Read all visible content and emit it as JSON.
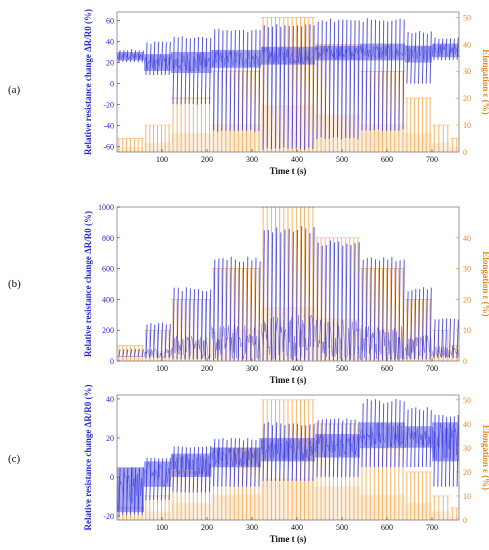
{
  "chart_data": [
    {
      "panel_label": "(a)",
      "type": "line",
      "xlabel": "Time t (s)",
      "ylabel_left": "Relative resistance change ΔR/R0 (%)",
      "ylabel_right": "Elongation ε (%)",
      "xlim": [
        0,
        760
      ],
      "ylim_left": [
        -65,
        68
      ],
      "ylim_right": [
        0,
        52
      ],
      "xticks": [
        100,
        200,
        300,
        400,
        500,
        600,
        700
      ],
      "yticks_left": [
        -60,
        -40,
        -20,
        0,
        20,
        40,
        60
      ],
      "yticks_right": [
        0,
        10,
        20,
        30,
        40,
        50
      ],
      "series": [
        {
          "name": "resistance",
          "axis": "left",
          "color": "#3a3ae0",
          "envelope": [
            {
              "t0": 0,
              "t1": 60,
              "base_lo": 22,
              "base_hi": 30,
              "peak": 33,
              "valley": 20
            },
            {
              "t0": 60,
              "t1": 120,
              "base_lo": 12,
              "base_hi": 28,
              "peak": 40,
              "valley": 8
            },
            {
              "t0": 120,
              "t1": 210,
              "base_lo": 10,
              "base_hi": 30,
              "peak": 45,
              "valley": -20
            },
            {
              "t0": 210,
              "t1": 320,
              "base_lo": 15,
              "base_hi": 32,
              "peak": 52,
              "valley": -46
            },
            {
              "t0": 320,
              "t1": 440,
              "base_lo": 18,
              "base_hi": 35,
              "peak": 57,
              "valley": -63
            },
            {
              "t0": 440,
              "t1": 540,
              "base_lo": 22,
              "base_hi": 36,
              "peak": 62,
              "valley": -53
            },
            {
              "t0": 540,
              "t1": 640,
              "base_lo": 22,
              "base_hi": 38,
              "peak": 62,
              "valley": -45
            },
            {
              "t0": 640,
              "t1": 700,
              "base_lo": 20,
              "base_hi": 36,
              "peak": 50,
              "valley": 0
            },
            {
              "t0": 700,
              "t1": 760,
              "base_lo": 25,
              "base_hi": 38,
              "peak": 44,
              "valley": 22
            }
          ]
        },
        {
          "name": "elongation",
          "axis": "right",
          "color": "#f2a040",
          "steps": [
            {
              "t0": 0,
              "t1": 60,
              "level": 5
            },
            {
              "t0": 60,
              "t1": 120,
              "level": 10
            },
            {
              "t0": 120,
              "t1": 210,
              "level": 20
            },
            {
              "t0": 210,
              "t1": 320,
              "level": 30
            },
            {
              "t0": 320,
              "t1": 440,
              "level": 50
            },
            {
              "t0": 440,
              "t1": 540,
              "level": 40
            },
            {
              "t0": 540,
              "t1": 640,
              "level": 30
            },
            {
              "t0": 640,
              "t1": 700,
              "level": 20
            },
            {
              "t0": 700,
              "t1": 740,
              "level": 10
            },
            {
              "t0": 740,
              "t1": 760,
              "level": 5
            }
          ]
        }
      ]
    },
    {
      "panel_label": "(b)",
      "type": "line",
      "xlabel": "Time t (s)",
      "ylabel_left": "Relative resistance change ΔR/R0 (%)",
      "ylabel_right": "Elongation ε (%)",
      "xlim": [
        0,
        760
      ],
      "ylim_left": [
        0,
        1000
      ],
      "ylim_right": [
        0,
        50
      ],
      "xticks": [
        100,
        200,
        300,
        400,
        500,
        600,
        700
      ],
      "yticks_left": [
        0,
        200,
        400,
        600,
        800,
        1000
      ],
      "yticks_right": [
        0,
        10,
        20,
        30,
        40
      ],
      "series": [
        {
          "name": "resistance",
          "axis": "left",
          "color": "#3a3ae0",
          "envelope": [
            {
              "t0": 0,
              "t1": 60,
              "peak": 80,
              "valley": 30
            },
            {
              "t0": 60,
              "t1": 120,
              "peak": 250,
              "valley": 20
            },
            {
              "t0": 120,
              "t1": 210,
              "peak": 480,
              "valley": 10
            },
            {
              "t0": 210,
              "t1": 320,
              "peak": 680,
              "valley": 5
            },
            {
              "t0": 320,
              "t1": 440,
              "peak": 880,
              "valley": 5
            },
            {
              "t0": 440,
              "t1": 540,
              "peak": 790,
              "valley": 5
            },
            {
              "t0": 540,
              "t1": 640,
              "peak": 680,
              "valley": 5
            },
            {
              "t0": 640,
              "t1": 700,
              "peak": 480,
              "valley": 10
            },
            {
              "t0": 700,
              "t1": 760,
              "peak": 280,
              "valley": 20
            }
          ]
        },
        {
          "name": "elongation",
          "axis": "right",
          "color": "#f2a040",
          "steps": [
            {
              "t0": 0,
              "t1": 60,
              "level": 5
            },
            {
              "t0": 60,
              "t1": 120,
              "level": 10
            },
            {
              "t0": 120,
              "t1": 210,
              "level": 20
            },
            {
              "t0": 210,
              "t1": 320,
              "level": 30
            },
            {
              "t0": 320,
              "t1": 440,
              "level": 50
            },
            {
              "t0": 440,
              "t1": 540,
              "level": 40
            },
            {
              "t0": 540,
              "t1": 640,
              "level": 30
            },
            {
              "t0": 640,
              "t1": 700,
              "level": 20
            },
            {
              "t0": 700,
              "t1": 740,
              "level": 10
            },
            {
              "t0": 740,
              "t1": 760,
              "level": 5
            }
          ]
        }
      ]
    },
    {
      "panel_label": "(c)",
      "type": "line",
      "xlabel": "Time t (s)",
      "ylabel_left": "Relative resistance change ΔR/R0 (%)",
      "ylabel_right": "Elongation ε (%)",
      "xlim": [
        0,
        760
      ],
      "ylim_left": [
        -22,
        42
      ],
      "ylim_right": [
        0,
        52
      ],
      "xticks": [
        100,
        200,
        300,
        400,
        500,
        600,
        700
      ],
      "yticks_left": [
        -20,
        0,
        20,
        40
      ],
      "yticks_right": [
        0,
        10,
        20,
        30,
        40,
        50
      ],
      "series": [
        {
          "name": "resistance",
          "axis": "left",
          "color": "#3a3ae0",
          "envelope": [
            {
              "t0": 0,
              "t1": 60,
              "base_lo": -18,
              "base_hi": 5,
              "peak": 5,
              "valley": -20
            },
            {
              "t0": 60,
              "t1": 120,
              "base_lo": -5,
              "base_hi": 8,
              "peak": 10,
              "valley": -12
            },
            {
              "t0": 120,
              "t1": 210,
              "base_lo": 0,
              "base_hi": 12,
              "peak": 16,
              "valley": -8
            },
            {
              "t0": 210,
              "t1": 320,
              "base_lo": 5,
              "base_hi": 15,
              "peak": 20,
              "valley": -5
            },
            {
              "t0": 320,
              "t1": 440,
              "base_lo": 8,
              "base_hi": 20,
              "peak": 28,
              "valley": -2
            },
            {
              "t0": 440,
              "t1": 540,
              "base_lo": 10,
              "base_hi": 22,
              "peak": 30,
              "valley": 0
            },
            {
              "t0": 540,
              "t1": 640,
              "base_lo": 15,
              "base_hi": 28,
              "peak": 40,
              "valley": 5
            },
            {
              "t0": 640,
              "t1": 700,
              "base_lo": 15,
              "base_hi": 26,
              "peak": 36,
              "valley": 5
            },
            {
              "t0": 700,
              "t1": 760,
              "base_lo": 8,
              "base_hi": 28,
              "peak": 32,
              "valley": -5
            }
          ]
        },
        {
          "name": "elongation",
          "axis": "right",
          "color": "#f2a040",
          "steps": [
            {
              "t0": 0,
              "t1": 60,
              "level": 5
            },
            {
              "t0": 60,
              "t1": 120,
              "level": 10
            },
            {
              "t0": 120,
              "t1": 210,
              "level": 20
            },
            {
              "t0": 210,
              "t1": 320,
              "level": 30
            },
            {
              "t0": 320,
              "t1": 440,
              "level": 50
            },
            {
              "t0": 440,
              "t1": 540,
              "level": 40
            },
            {
              "t0": 540,
              "t1": 640,
              "level": 30
            },
            {
              "t0": 640,
              "t1": 700,
              "level": 20
            },
            {
              "t0": 700,
              "t1": 740,
              "level": 10
            },
            {
              "t0": 740,
              "t1": 760,
              "level": 5
            }
          ]
        }
      ]
    }
  ]
}
